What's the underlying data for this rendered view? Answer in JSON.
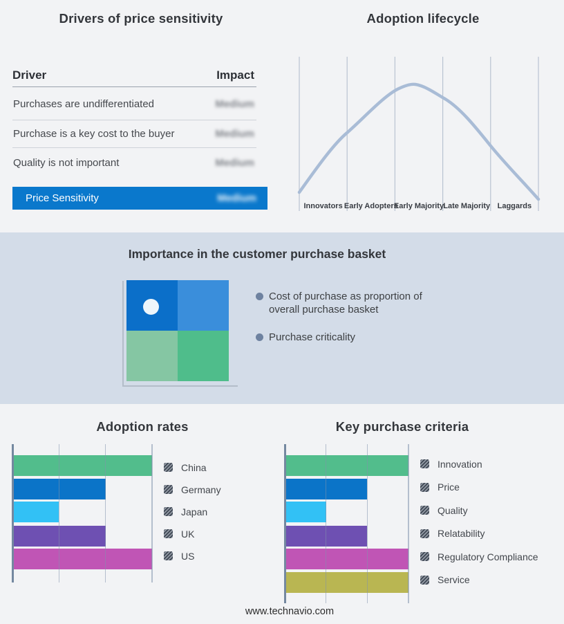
{
  "page": {
    "background": "#f2f3f5",
    "band_background": "#d3dce8"
  },
  "drivers": {
    "title": "Drivers of price sensitivity",
    "columns": {
      "driver": "Driver",
      "impact": "Impact"
    },
    "rows": [
      {
        "driver": "Purchases are undifferentiated",
        "impact": "Medium",
        "impact_blurred": true
      },
      {
        "driver": "Purchase is a key cost to the buyer",
        "impact": "Medium",
        "impact_blurred": true
      },
      {
        "driver": "Quality is not important",
        "impact": "Medium",
        "impact_blurred": true
      }
    ],
    "summary_row": {
      "driver": "Price Sensitivity",
      "impact": "Medium",
      "impact_blurred": true,
      "background": "#0a78cc"
    }
  },
  "lifecycle": {
    "title": "Adoption lifecycle",
    "stages": [
      "Innovators",
      "Early Adopters",
      "Early Majority",
      "Late Majority",
      "Laggards"
    ],
    "curve_color": "#a9bcd6",
    "gridline_color": "#b9c3d1"
  },
  "basket": {
    "title": "Importance in the customer purchase basket",
    "bullets": [
      "Cost of purchase as proportion of overall purchase basket",
      "Purchase criticality"
    ],
    "quadrant": {
      "top_left": "#0b6fc9",
      "top_right": "#3a8edb",
      "bottom_left": "#85c6a3",
      "bottom_right": "#4fbd8b",
      "dot_color": "#eef6fb"
    }
  },
  "chart_data": [
    {
      "type": "line",
      "title": "Adoption lifecycle",
      "x_categories": [
        "Innovators",
        "Early Adopters",
        "Early Majority",
        "Late Majority",
        "Laggards"
      ],
      "description": "Bell-shaped adoption curve rising from Innovators, peaking at Early Majority, falling through Laggards",
      "grid": true,
      "legend_position": "none"
    },
    {
      "type": "bar",
      "title": "Adoption rates",
      "orientation": "horizontal",
      "categories": [
        "China",
        "Germany",
        "Japan",
        "UK",
        "US"
      ],
      "values": [
        3,
        2,
        1,
        2,
        3
      ],
      "xlim": [
        0,
        3
      ],
      "grid": true,
      "legend_position": "right",
      "colors": [
        "#52bd8c",
        "#0b74c8",
        "#32c1f5",
        "#6e50b2",
        "#c055b5"
      ]
    },
    {
      "type": "bar",
      "title": "Key purchase criteria",
      "orientation": "horizontal",
      "categories": [
        "Innovation",
        "Price",
        "Quality",
        "Relatability",
        "Regulatory Compliance",
        "Service"
      ],
      "values": [
        3,
        2,
        1,
        2,
        3,
        3
      ],
      "xlim": [
        0,
        3
      ],
      "grid": true,
      "legend_position": "right",
      "colors": [
        "#52bd8c",
        "#0b74c8",
        "#32c1f5",
        "#6e50b2",
        "#c055b5",
        "#b9b652"
      ]
    }
  ],
  "footer": {
    "url": "www.technavio.com"
  }
}
